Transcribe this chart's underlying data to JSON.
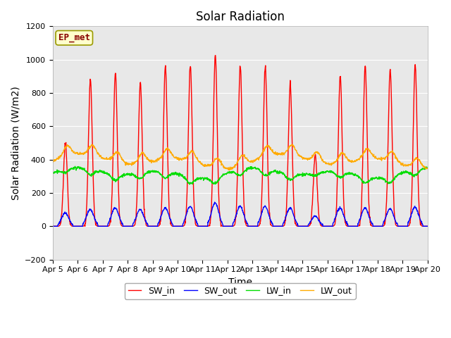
{
  "title": "Solar Radiation",
  "ylabel": "Solar Radiation (W/m2)",
  "xlabel": "Time",
  "annotation": "EP_met",
  "ylim": [
    -200,
    1200
  ],
  "yticks": [
    -200,
    0,
    200,
    400,
    600,
    800,
    1000,
    1200
  ],
  "x_tick_labels": [
    "Apr 5",
    "Apr 6",
    "Apr 7",
    "Apr 8",
    "Apr 9",
    "Apr 10",
    "Apr 11",
    "Apr 12",
    "Apr 13",
    "Apr 14",
    "Apr 15",
    "Apr 16",
    "Apr 17",
    "Apr 18",
    "Apr 19",
    "Apr 20"
  ],
  "series_colors": {
    "SW_in": "#ff0000",
    "SW_out": "#0000ff",
    "LW_in": "#00dd00",
    "LW_out": "#ffaa00"
  },
  "plot_bg_color": "#e8e8e8",
  "fig_bg_color": "#ffffff",
  "legend_labels": [
    "SW_in",
    "SW_out",
    "LW_in",
    "LW_out"
  ],
  "title_fontsize": 12,
  "tick_fontsize": 8,
  "label_fontsize": 10,
  "annotation_fontsize": 9,
  "linewidth": 1.0,
  "total_days": 15,
  "resolution_per_hour": 4,
  "day_peaks_SW_in": [
    500,
    880,
    920,
    860,
    960,
    970,
    1030,
    960,
    960,
    850,
    430,
    900,
    960,
    940,
    970
  ],
  "day_peaks_SW_out": [
    80,
    100,
    110,
    100,
    110,
    120,
    140,
    120,
    120,
    110,
    60,
    110,
    110,
    105,
    115
  ]
}
